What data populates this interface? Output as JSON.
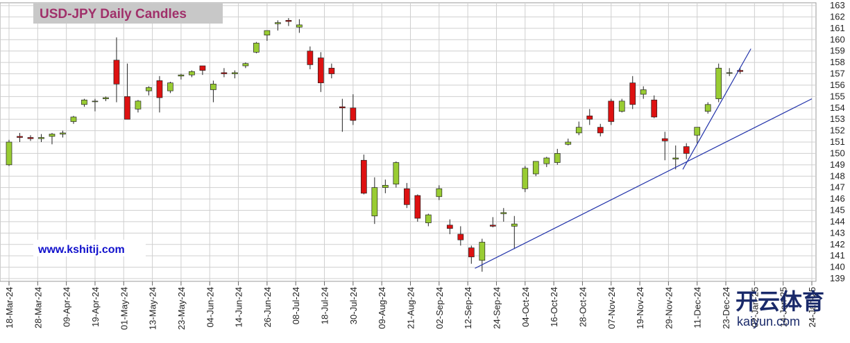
{
  "chart_data": {
    "type": "candlestick",
    "title": "USD-JPY Daily Candles",
    "source": "www.kshitij.com",
    "watermark": "开云体育",
    "watermark_sub": "kaiyun.com",
    "x": [
      "18-Mar-24",
      "21-Mar-24",
      "26-Mar-24",
      "29-Mar-24",
      "03-Apr-24",
      "08-Apr-24",
      "11-Apr-24",
      "16-Apr-24",
      "19-Apr-24",
      "24-Apr-24",
      "29-Apr-24",
      "02-May-24",
      "07-May-24",
      "10-May-24",
      "15-May-24",
      "20-May-24",
      "23-May-24",
      "28-May-24",
      "31-May-24",
      "05-Jun-24",
      "10-Jun-24",
      "13-Jun-24",
      "18-Jun-24",
      "21-Jun-24",
      "26-Jun-24",
      "01-Jul-24",
      "04-Jul-24",
      "09-Jul-24",
      "12-Jul-24",
      "17-Jul-24",
      "22-Jul-24",
      "25-Jul-24",
      "30-Jul-24",
      "02-Aug-24",
      "07-Aug-24",
      "12-Aug-24",
      "15-Aug-24",
      "20-Aug-24",
      "23-Aug-24",
      "28-Aug-24",
      "02-Sep-24",
      "05-Sep-24",
      "10-Sep-24",
      "13-Sep-24",
      "18-Sep-24",
      "23-Sep-24",
      "26-Sep-24",
      "01-Oct-24",
      "04-Oct-24",
      "09-Oct-24",
      "14-Oct-24",
      "17-Oct-24",
      "22-Oct-24",
      "25-Oct-24",
      "30-Oct-24",
      "04-Nov-24",
      "07-Nov-24",
      "12-Nov-24",
      "15-Nov-24",
      "20-Nov-24",
      "25-Nov-24",
      "28-Nov-24",
      "03-Dec-24",
      "06-Dec-24",
      "11-Dec-24",
      "16-Dec-24",
      "19-Dec-24",
      "24-Dec-24",
      "27-Dec-24"
    ],
    "open": [
      149.0,
      151.5,
      151.4,
      151.3,
      151.5,
      151.7,
      152.8,
      154.3,
      154.6,
      154.8,
      158.2,
      155.0,
      153.9,
      155.5,
      156.4,
      155.5,
      156.8,
      156.9,
      157.7,
      155.6,
      157.1,
      157.0,
      157.7,
      158.9,
      160.4,
      161.4,
      161.7,
      161.1,
      159.0,
      158.4,
      157.5,
      154.1,
      154.0,
      149.4,
      144.5,
      147.0,
      147.3,
      146.9,
      146.3,
      143.9,
      146.2,
      143.7,
      142.9,
      141.7,
      140.6,
      143.7,
      144.7,
      143.6,
      146.9,
      148.2,
      149.1,
      149.2,
      150.8,
      151.8,
      153.3,
      152.3,
      154.6,
      153.7,
      156.2,
      155.2,
      154.7,
      151.3,
      149.5,
      150.6,
      151.6,
      153.7,
      154.8,
      157.1,
      157.3
    ],
    "high": [
      151.2,
      151.8,
      151.6,
      151.7,
      151.8,
      152.0,
      153.3,
      154.8,
      154.8,
      155.0,
      160.2,
      157.9,
      154.7,
      155.9,
      156.8,
      156.3,
      157.0,
      157.3,
      157.7,
      156.4,
      157.5,
      157.3,
      158.0,
      159.8,
      160.8,
      161.7,
      161.9,
      161.8,
      159.4,
      158.9,
      157.9,
      154.8,
      155.2,
      149.9,
      147.9,
      147.7,
      149.3,
      147.4,
      146.4,
      144.7,
      147.2,
      144.2,
      143.6,
      141.9,
      142.5,
      144.4,
      145.2,
      144.5,
      148.9,
      149.3,
      149.7,
      150.4,
      151.3,
      152.8,
      153.9,
      152.6,
      154.8,
      154.8,
      156.8,
      155.9,
      155.1,
      151.9,
      150.7,
      150.9,
      152.3,
      154.5,
      157.9,
      157.5,
      157.5
    ],
    "low": [
      148.9,
      151.0,
      151.1,
      151.0,
      150.8,
      151.4,
      152.6,
      154.1,
      153.7,
      154.6,
      154.5,
      153.0,
      153.6,
      155.1,
      153.6,
      155.3,
      156.5,
      156.7,
      156.9,
      154.5,
      156.7,
      156.6,
      157.5,
      158.8,
      159.9,
      160.8,
      161.2,
      160.6,
      157.4,
      155.4,
      156.6,
      151.9,
      152.5,
      146.4,
      143.8,
      146.5,
      147.0,
      145.2,
      144.0,
      143.6,
      145.9,
      142.9,
      141.9,
      140.3,
      139.6,
      143.5,
      144.0,
      141.6,
      146.6,
      148.0,
      148.8,
      149.0,
      150.7,
      151.6,
      152.5,
      151.5,
      152.5,
      153.6,
      153.9,
      154.8,
      153.1,
      149.4,
      148.6,
      149.5,
      150.9,
      153.5,
      154.5,
      156.8,
      157.0
    ],
    "close": [
      151.0,
      151.4,
      151.3,
      151.4,
      151.7,
      151.8,
      153.2,
      154.7,
      154.6,
      154.9,
      156.1,
      153.0,
      154.6,
      155.8,
      154.9,
      156.2,
      156.9,
      157.2,
      157.3,
      156.1,
      157.0,
      157.1,
      157.9,
      159.7,
      160.8,
      161.5,
      161.6,
      161.3,
      157.8,
      156.2,
      157.0,
      154.0,
      152.9,
      146.5,
      147.0,
      147.2,
      149.2,
      145.5,
      144.3,
      144.6,
      146.9,
      143.4,
      142.4,
      140.9,
      142.2,
      143.6,
      144.8,
      143.8,
      148.7,
      149.3,
      149.6,
      150.0,
      151.0,
      152.3,
      153.0,
      151.8,
      152.8,
      154.6,
      154.3,
      155.6,
      153.2,
      151.1,
      149.6,
      150.0,
      152.3,
      154.3,
      157.5,
      157.1,
      157.2
    ],
    "up_color": "#99cc33",
    "down_color": "#dd1111",
    "lines": [
      {
        "color": "#2233aa",
        "x": [
          "16-Sep-24",
          "24-Jan-25"
        ],
        "y": [
          139.9,
          154.8
        ]
      },
      {
        "color": "#2233aa",
        "x": [
          "05-Dec-24",
          "01-Jan-25"
        ],
        "y": [
          148.6,
          159.2
        ]
      }
    ],
    "xlim": [
      "18-Mar-24",
      "24-Jan-25"
    ],
    "xticks": [
      "18-Mar-24",
      "28-Mar-24",
      "09-Apr-24",
      "19-Apr-24",
      "01-May-24",
      "13-May-24",
      "23-May-24",
      "04-Jun-24",
      "14-Jun-24",
      "26-Jun-24",
      "08-Jul-24",
      "18-Jul-24",
      "30-Jul-24",
      "09-Aug-24",
      "21-Aug-24",
      "02-Sep-24",
      "12-Sep-24",
      "24-Sep-24",
      "04-Oct-24",
      "16-Oct-24",
      "28-Oct-24",
      "07-Nov-24",
      "19-Nov-24",
      "29-Nov-24",
      "11-Dec-24",
      "23-Dec-24",
      "02-Jan-25",
      "14-Jan-25",
      "24-Jan-25"
    ],
    "ylim": [
      139,
      163
    ],
    "yticks": [
      139,
      140,
      141,
      142,
      143,
      144,
      145,
      146,
      147,
      148,
      149,
      150,
      151,
      152,
      153,
      154,
      155,
      156,
      157,
      158,
      159,
      160,
      161,
      162,
      163
    ],
    "grid": true
  }
}
